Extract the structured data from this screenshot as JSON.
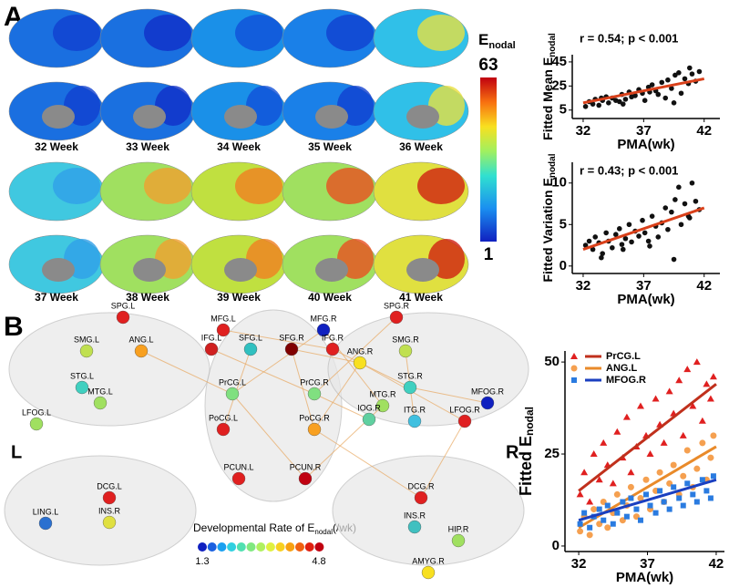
{
  "panels": {
    "a": "A",
    "b": "B"
  },
  "brain_maps": {
    "weeks": [
      "32 Week",
      "33 Week",
      "34 Week",
      "35 Week",
      "36 Week",
      "37 Week",
      "38 Week",
      "39 Week",
      "40 Week",
      "41 Week"
    ],
    "colorbar": {
      "title": "E",
      "title_sub": "nodal",
      "max": "63",
      "min": "1"
    }
  },
  "network": {
    "nodes": [
      "SPG.L",
      "SMG.L",
      "ANG.L",
      "STG.L",
      "MTG.L",
      "LFOG.L",
      "MFG.L",
      "MFG.R",
      "IFG.L",
      "SFG.L",
      "SFG.R",
      "IFG.R",
      "PrCG.L",
      "PrCG.R",
      "PoCG.L",
      "PoCG.R",
      "PCUN.L",
      "PCUN.R",
      "SPG.R",
      "SMG.R",
      "ANG.R",
      "STG.R",
      "MTG.R",
      "IOG.R",
      "ITG.R",
      "LFOG.R",
      "MFOG.R",
      "DCG.L",
      "INS.R",
      "LING.L",
      "DCG.R",
      "INS.R",
      "HIP.R",
      "AMYG.R"
    ],
    "left": "L",
    "right": "R",
    "legend": {
      "title": "Developmental Rate of E",
      "title_sub": "nodal",
      "unit": "(/wk)",
      "min": "1.3",
      "max": "4.8"
    }
  },
  "chart_data": [
    {
      "type": "scatter",
      "annotation": "r = 0.54;   p < 0.001",
      "xlabel": "PMA(wk)",
      "ylabel": "Fitted Mean E",
      "ylabel_sub": "nodal",
      "color": "#111111",
      "fit_color": "#d9401a",
      "x": [
        32.2,
        32.5,
        32.8,
        33.0,
        33.3,
        33.6,
        33.9,
        34.1,
        34.4,
        34.7,
        35.0,
        35.2,
        35.5,
        35.8,
        36.0,
        36.3,
        36.6,
        36.9,
        37.1,
        37.4,
        37.7,
        38.0,
        38.2,
        38.5,
        38.8,
        39.0,
        39.3,
        39.6,
        39.9,
        40.1,
        40.4,
        40.7,
        41.0,
        41.3,
        41.6,
        33.5,
        35.3,
        37.5,
        39.5,
        40.8
      ],
      "values": [
        8,
        12,
        10,
        14,
        9,
        13,
        16,
        11,
        15,
        13,
        12,
        18,
        14,
        20,
        16,
        17,
        22,
        19,
        13,
        24,
        26,
        21,
        18,
        28,
        15,
        30,
        23,
        34,
        36,
        19,
        31,
        27,
        35,
        29,
        37,
        15,
        10,
        20,
        11,
        40
      ],
      "fit": {
        "x": [
          32,
          42
        ],
        "values": [
          11,
          31
        ]
      },
      "xlim": [
        31.1,
        43.3
      ],
      "ylim": [
        -2,
        51
      ],
      "xticks": [
        32,
        37,
        42
      ],
      "yticks": [
        5,
        25,
        45
      ]
    },
    {
      "type": "scatter",
      "annotation": "r = 0.43;   p < 0.001",
      "xlabel": "PMA(wk)",
      "ylabel": "Fitted Variation E",
      "ylabel_sub": "nodal",
      "color": "#111111",
      "fit_color": "#d9401a",
      "x": [
        32.2,
        32.5,
        32.8,
        33.0,
        33.3,
        33.6,
        33.9,
        34.1,
        34.4,
        34.7,
        35.0,
        35.2,
        35.5,
        35.8,
        36.0,
        36.3,
        36.6,
        36.9,
        37.1,
        37.4,
        37.7,
        38.0,
        38.2,
        38.5,
        38.8,
        39.0,
        39.3,
        39.6,
        39.9,
        40.1,
        40.4,
        40.7,
        41.0,
        41.3,
        41.6,
        33.5,
        35.3,
        37.5,
        39.5,
        40.8
      ],
      "values": [
        2.5,
        3,
        2,
        3.5,
        2.8,
        1.5,
        4,
        3,
        2.2,
        3.8,
        4.5,
        2.6,
        3.3,
        5,
        2.9,
        4.2,
        3.6,
        5.5,
        4,
        3,
        6,
        4.8,
        3.5,
        5.2,
        7,
        4.4,
        6.5,
        8,
        9.5,
        5,
        7.5,
        6,
        10,
        7.8,
        6.8,
        1,
        2,
        2.4,
        0.8,
        5.8
      ],
      "fit": {
        "x": [
          32,
          42
        ],
        "values": [
          2,
          7
        ]
      },
      "xlim": [
        31.1,
        43.3
      ],
      "ylim": [
        -0.9,
        12.5
      ],
      "xticks": [
        32,
        37,
        42
      ],
      "yticks": [
        0,
        5,
        10
      ]
    },
    {
      "type": "scatter",
      "xlabel": "PMA(wk)",
      "ylabel": "Fitted E",
      "ylabel_sub": "nodal",
      "x": [
        32.1,
        32.4,
        32.8,
        33.1,
        33.5,
        33.8,
        34.1,
        34.5,
        34.8,
        35.2,
        35.5,
        35.8,
        36.2,
        36.5,
        36.9,
        37.2,
        37.6,
        37.9,
        38.2,
        38.6,
        38.9,
        39.3,
        39.6,
        39.9,
        40.3,
        40.6,
        41.0,
        41.3,
        41.6,
        41.8
      ],
      "series": [
        {
          "name": "PrCG.L",
          "color": "#e02020",
          "marker": "triangle",
          "values": [
            14,
            20,
            12,
            25,
            18,
            28,
            22,
            17,
            31,
            24,
            35,
            20,
            27,
            38,
            30,
            25,
            40,
            33,
            28,
            42,
            36,
            45,
            30,
            48,
            38,
            50,
            34,
            44,
            40,
            46
          ],
          "fit": {
            "x": [
              32,
              42
            ],
            "values": [
              15,
              44
            ]
          },
          "fit_color": "#c0301c"
        },
        {
          "name": "ANG.L",
          "color": "#f5a050",
          "marker": "circle",
          "values": [
            4,
            8,
            3,
            10,
            6,
            12,
            5,
            9,
            14,
            7,
            11,
            16,
            8,
            13,
            18,
            10,
            15,
            20,
            12,
            17,
            22,
            14,
            19,
            26,
            16,
            21,
            28,
            18,
            24,
            30
          ],
          "fit": {
            "x": [
              32,
              42
            ],
            "values": [
              5,
              27
            ]
          },
          "fit_color": "#e98a2a"
        },
        {
          "name": "MFOG.R",
          "color": "#2a7be0",
          "marker": "square",
          "values": [
            6,
            9,
            5,
            8,
            10,
            7,
            11,
            6,
            9,
            12,
            8,
            13,
            10,
            7,
            14,
            11,
            9,
            15,
            12,
            10,
            16,
            13,
            11,
            17,
            14,
            12,
            18,
            15,
            13,
            19
          ],
          "fit": {
            "x": [
              32,
              42
            ],
            "values": [
              7,
              18
            ]
          },
          "fit_color": "#1a3fc0"
        }
      ],
      "xlim": [
        31,
        42.6
      ],
      "ylim": [
        -1.5,
        53
      ],
      "xticks": [
        32,
        37,
        42
      ],
      "yticks": [
        0,
        25,
        50
      ]
    }
  ]
}
